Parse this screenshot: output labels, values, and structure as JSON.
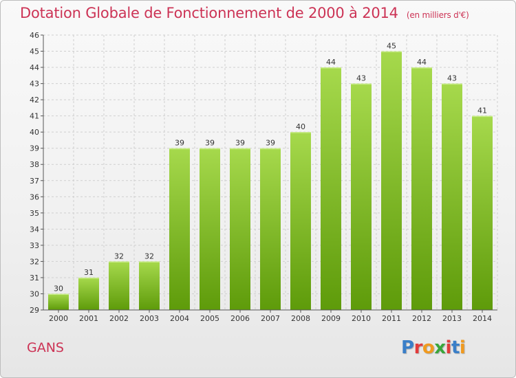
{
  "header": {
    "title": "Dotation Globale de Fonctionnement de 2000 à 2014",
    "subtitle": "(en milliers d'€)"
  },
  "footer": {
    "place": "GANS",
    "logo": "Proxiti",
    "logo_colors": [
      "#3a7fc8",
      "#e23b3b",
      "#f09a1f",
      "#3aa63a",
      "#e23b3b",
      "#3a7fc8",
      "#f09a1f"
    ]
  },
  "colors": {
    "title": "#cc3355",
    "bar_light": "#a6d94c",
    "bar_dark": "#5e9b0a",
    "grid": "#cfcfcf",
    "axis": "#555555"
  },
  "chart_data": {
    "type": "bar",
    "categories": [
      "2000",
      "2001",
      "2002",
      "2003",
      "2004",
      "2005",
      "2006",
      "2007",
      "2008",
      "2009",
      "2010",
      "2011",
      "2012",
      "2013",
      "2014"
    ],
    "values": [
      30,
      31,
      32,
      32,
      39,
      39,
      39,
      39,
      40,
      44,
      43,
      45,
      44,
      43,
      41
    ],
    "ylim": [
      29,
      46
    ],
    "yticks": [
      29,
      30,
      31,
      32,
      33,
      34,
      35,
      36,
      37,
      38,
      39,
      40,
      41,
      42,
      43,
      44,
      45,
      46
    ],
    "grid": true,
    "data_labels": true,
    "title": "Dotation Globale de Fonctionnement de 2000 à 2014",
    "subtitle": "(en milliers d'€)"
  }
}
